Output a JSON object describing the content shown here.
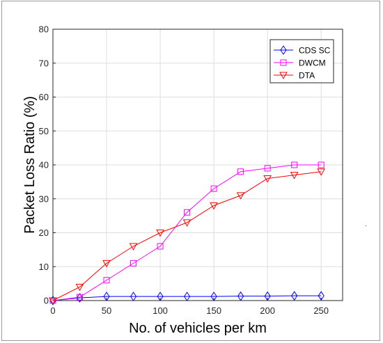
{
  "chart_data": {
    "type": "line",
    "title": "",
    "xlabel": "No. of vehicles per km",
    "ylabel": "Packet Loss Ratio (%)",
    "xlim": [
      0,
      270
    ],
    "ylim": [
      0,
      80
    ],
    "xticks": [
      0,
      50,
      100,
      150,
      200,
      250
    ],
    "yticks": [
      0,
      10,
      20,
      30,
      40,
      50,
      60,
      70,
      80
    ],
    "grid": true,
    "legend_position": "top-right",
    "x": [
      0,
      25,
      50,
      75,
      100,
      125,
      150,
      175,
      200,
      225,
      250
    ],
    "series": [
      {
        "name": "CDS SC",
        "color": "#0000ff",
        "marker": "diamond",
        "values": [
          0,
          0.8,
          1.2,
          1.2,
          1.2,
          1.2,
          1.2,
          1.3,
          1.3,
          1.4,
          1.4
        ]
      },
      {
        "name": "DWCM",
        "color": "#ff00ff",
        "marker": "square",
        "values": [
          0,
          1,
          6,
          11,
          16,
          26,
          33,
          38,
          39,
          40,
          40
        ]
      },
      {
        "name": "DTA",
        "color": "#ff0000",
        "marker": "triangle-down",
        "values": [
          0,
          4,
          11,
          16,
          20,
          23,
          28,
          31,
          36,
          37,
          38
        ]
      }
    ]
  }
}
